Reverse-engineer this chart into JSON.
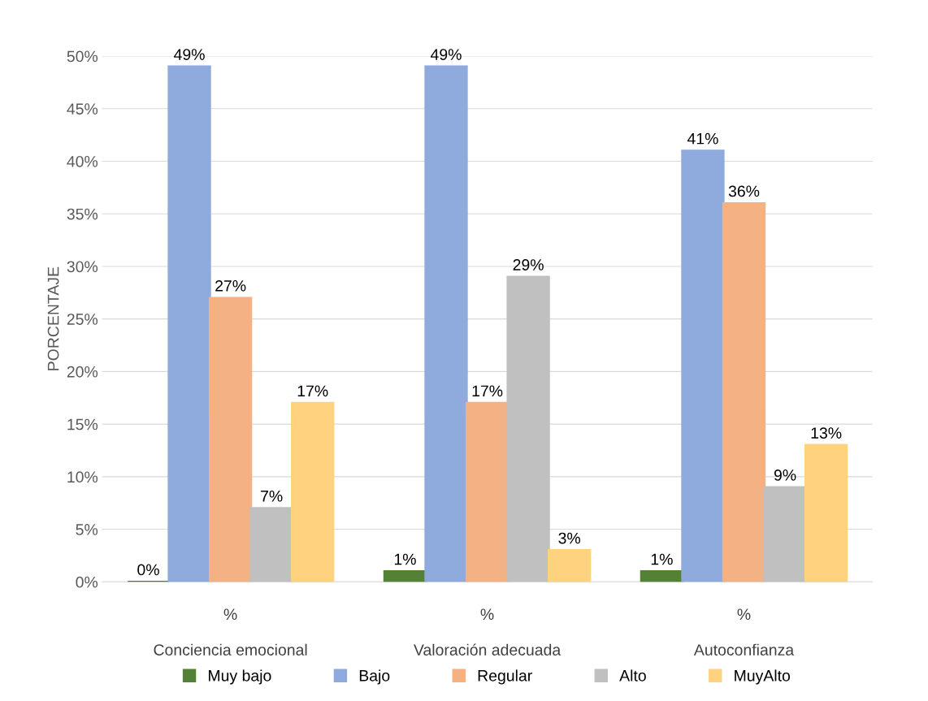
{
  "chart_data": {
    "type": "bar",
    "ylabel": "PORCENTAJE",
    "categories": [
      "Conciencia emocional",
      "Valoración adecuada",
      "Autoconfianza"
    ],
    "series": [
      {
        "name": "Muy bajo",
        "color": "#548235",
        "values": [
          0,
          1,
          1
        ],
        "value_labels": [
          "0%",
          "1%",
          "1%"
        ]
      },
      {
        "name": "Bajo",
        "color": "#8faadc",
        "values": [
          49,
          49,
          41
        ],
        "value_labels": [
          "49%",
          "49%",
          "41%"
        ]
      },
      {
        "name": "Regular",
        "color": "#f4b183",
        "values": [
          27,
          17,
          36
        ],
        "value_labels": [
          "27%",
          "17%",
          "36%"
        ]
      },
      {
        "name": "Alto",
        "color": "#c0c0c0",
        "values": [
          7,
          29,
          9
        ],
        "value_labels": [
          "7%",
          "29%",
          "9%"
        ]
      },
      {
        "name": "MuyAlto",
        "color": "#ffd280",
        "values": [
          17,
          3,
          13
        ],
        "value_labels": [
          "17%",
          "3%",
          "13%"
        ]
      }
    ],
    "annotations": [
      "%",
      "%",
      "%"
    ],
    "ylim": [
      0,
      50
    ],
    "yticks": [
      {
        "value": 0,
        "label": "0%"
      },
      {
        "value": 5,
        "label": "5%"
      },
      {
        "value": 10,
        "label": "10%"
      },
      {
        "value": 15,
        "label": "15%"
      },
      {
        "value": 20,
        "label": "20%"
      },
      {
        "value": 25,
        "label": "25%"
      },
      {
        "value": 30,
        "label": "30%"
      },
      {
        "value": 35,
        "label": "35%"
      },
      {
        "value": 40,
        "label": "40%"
      },
      {
        "value": 45,
        "label": "45%"
      },
      {
        "value": 50,
        "label": "50%"
      }
    ],
    "grid": "y",
    "legend": "bottom"
  }
}
